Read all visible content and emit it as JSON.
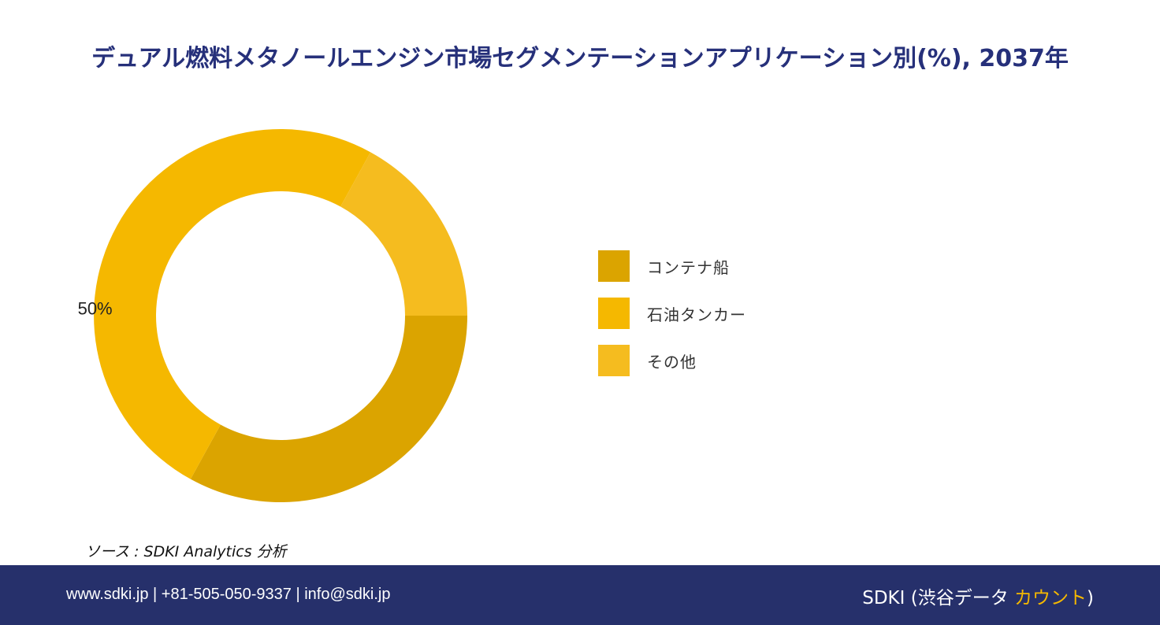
{
  "title": "デュアル燃料メタノールエンジン市場セグメンテーションアプリケーション別(%), 2037年",
  "chart_data": {
    "type": "pie",
    "title": "デュアル燃料メタノールエンジン市場セグメンテーションアプリケーション別(%), 2037年",
    "style": "donut",
    "categories": [
      "コンテナ船",
      "石油タンカー",
      "その他"
    ],
    "values": [
      33,
      50,
      17
    ],
    "colors": [
      "#dba400",
      "#f5b800",
      "#f5bc1f"
    ],
    "data_labels": [
      "",
      "50%",
      ""
    ],
    "legend_position": "right"
  },
  "legend": [
    {
      "label": "コンテナ船",
      "color": "#dba400"
    },
    {
      "label": "石油タンカー",
      "color": "#f5b800"
    },
    {
      "label": "その他",
      "color": "#f5bc1f"
    }
  ],
  "source": "ソース : SDKI Analytics 分析",
  "footer": {
    "contact": "www.sdki.jp | +81-505-050-9337 | info@sdki.jp",
    "brand_main": "SDKI (渋谷データ ",
    "brand_accent": "カウント",
    "brand_close": ")"
  }
}
